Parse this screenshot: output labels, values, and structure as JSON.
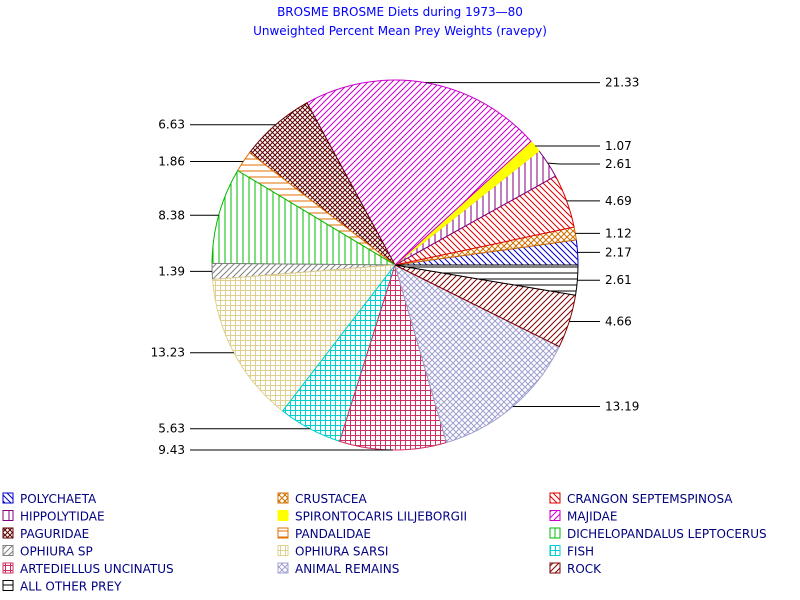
{
  "chart_data": {
    "type": "pie",
    "title": "BROSME BROSME Diets during 1973—80",
    "subtitle": "Unweighted Percent Mean Prey Weights (ravepy)",
    "slices": [
      {
        "label": "POLYCHAETA",
        "value": 2.17,
        "value_label": "2.17",
        "color": "#0000c8",
        "pattern": "diag-down"
      },
      {
        "label": "CRUSTACEA",
        "value": 1.12,
        "value_label": "1.12",
        "color": "#d07000",
        "pattern": "cross"
      },
      {
        "label": "CRANGON SEPTEMSPINOSA",
        "value": 4.69,
        "value_label": "4.69",
        "color": "#e00000",
        "pattern": "diag-down"
      },
      {
        "label": "HIPPOLYTIDAE",
        "value": 2.61,
        "value_label": "2.61",
        "color": "#800080",
        "pattern": "vertical"
      },
      {
        "label": "SPIRONTOCARIS LILJEBORGII",
        "value": 1.07,
        "value_label": "1.07",
        "color": "#ffff00",
        "pattern": "solid"
      },
      {
        "label": "MAJIDAE",
        "value": 21.33,
        "value_label": "21.33",
        "color": "#cc00cc",
        "pattern": "diag-up"
      },
      {
        "label": "PAGURIDAE",
        "value": 6.63,
        "value_label": "6.63",
        "color": "#600000",
        "pattern": "crosshatch-dense"
      },
      {
        "label": "PANDALIDAE",
        "value": 1.86,
        "value_label": "1.86",
        "color": "#e07000",
        "pattern": "horizontal"
      },
      {
        "label": "DICHELOPANDALUS LEPTOCERUS",
        "value": 8.38,
        "value_label": "8.38",
        "color": "#00bb00",
        "pattern": "vertical"
      },
      {
        "label": "OPHIURA SP",
        "value": 1.39,
        "value_label": "1.39",
        "color": "#808080",
        "pattern": "diag-up"
      },
      {
        "label": "OPHIURA SARSI",
        "value": 13.23,
        "value_label": "13.23",
        "color": "#e0d090",
        "pattern": "grid"
      },
      {
        "label": "FISH",
        "value": 5.63,
        "value_label": "5.63",
        "color": "#00d0d0",
        "pattern": "grid"
      },
      {
        "label": "ARTEDIELLUS UNCINATUS",
        "value": 9.43,
        "value_label": "9.43",
        "color": "#d03060",
        "pattern": "grid"
      },
      {
        "label": "ANIMAL REMAINS",
        "value": 13.19,
        "value_label": "13.19",
        "color": "#a0a0d0",
        "pattern": "crosshatch"
      },
      {
        "label": "ROCK",
        "value": 4.66,
        "value_label": "4.66",
        "color": "#800000",
        "pattern": "diag-up"
      },
      {
        "label": "ALL OTHER PREY",
        "value": 2.61,
        "value_label": "2.61",
        "color": "#000000",
        "pattern": "horizontal"
      }
    ],
    "legend_position": "bottom",
    "legend_columns": 3
  }
}
